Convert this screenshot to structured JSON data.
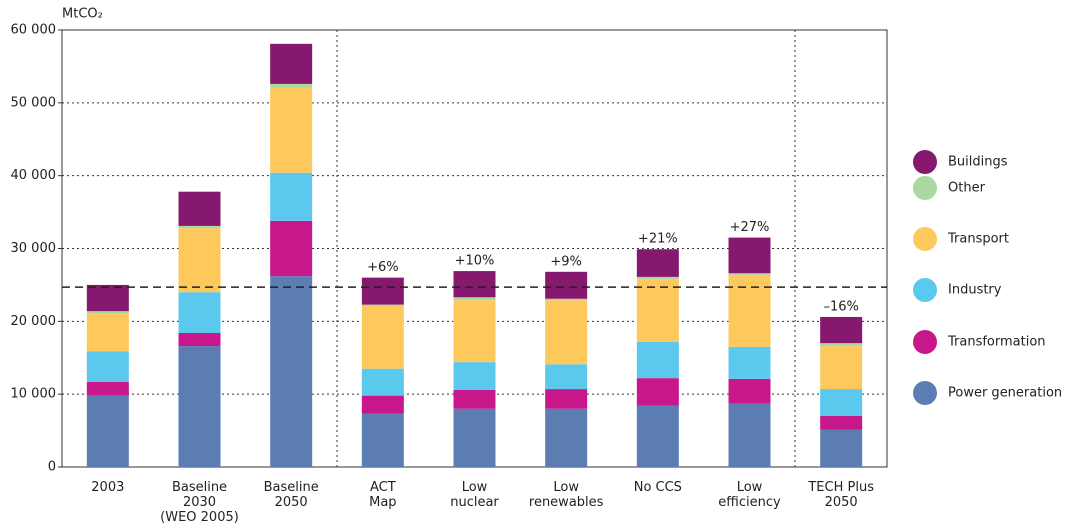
{
  "chart_data": {
    "type": "stacked_bar",
    "y_label": "MtCO₂",
    "categories": [
      [
        "2003"
      ],
      [
        "Baseline",
        "2030",
        "(WEO 2005)"
      ],
      [
        "Baseline",
        "2050"
      ],
      [
        "ACT",
        "Map"
      ],
      [
        "Low",
        "nuclear"
      ],
      [
        "Low",
        "renewables"
      ],
      [
        "No CCS"
      ],
      [
        "Low",
        "efficiency"
      ],
      [
        "TECH Plus",
        "2050"
      ]
    ],
    "series": [
      {
        "name": "Power generation",
        "color": "#5b7db1",
        "values": [
          9800,
          16600,
          26200,
          7300,
          8000,
          8000,
          8400,
          8700,
          5100
        ]
      },
      {
        "name": "Transformation",
        "color": "#c8178a",
        "values": [
          1900,
          1800,
          7600,
          2500,
          2600,
          2700,
          3800,
          3400,
          1900
        ]
      },
      {
        "name": "Industry",
        "color": "#5bc8ee",
        "values": [
          4200,
          5600,
          6600,
          3700,
          3800,
          3400,
          5000,
          4400,
          3700
        ]
      },
      {
        "name": "Transport",
        "color": "#fec95c",
        "values": [
          5200,
          8800,
          11700,
          8600,
          8500,
          8800,
          8600,
          9900,
          5900
        ]
      },
      {
        "name": "Other",
        "color": "#a9d9a0",
        "values": [
          300,
          300,
          500,
          200,
          400,
          200,
          300,
          200,
          400
        ]
      },
      {
        "name": "Buildings",
        "color": "#86196e",
        "values": [
          3600,
          4700,
          5500,
          3700,
          3600,
          3700,
          3800,
          4900,
          3600
        ]
      }
    ],
    "bar_annotations": [
      null,
      null,
      null,
      "+6%",
      "+10%",
      "+9%",
      "+21%",
      "+27%",
      "–16%"
    ],
    "reference_line": 24700,
    "ylim": [
      0,
      60000
    ],
    "yticks": [
      0,
      {
        "value": 10000,
        "label": "10 000"
      },
      {
        "value": 20000,
        "label": "20 000"
      },
      {
        "value": 30000,
        "label": "30 000"
      },
      {
        "value": 40000,
        "label": "40 000"
      },
      {
        "value": 50000,
        "label": "50 000"
      },
      {
        "value": 60000,
        "label": "60 000"
      }
    ],
    "grid": true
  }
}
